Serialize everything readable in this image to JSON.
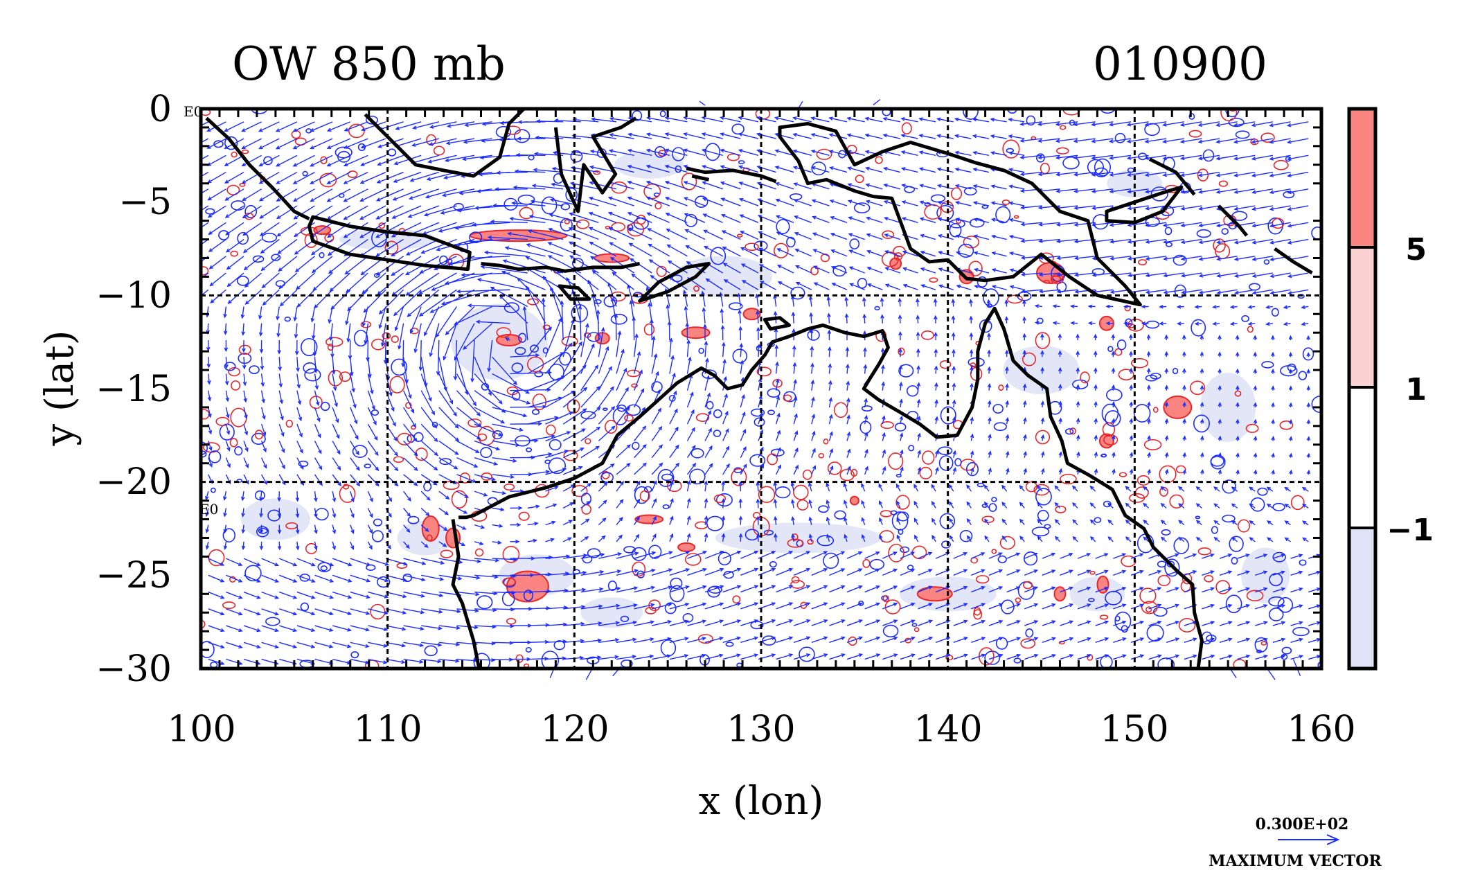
{
  "title": "OW 850 mb",
  "time_code": "010900",
  "map": {
    "xlabel": "x (lon)",
    "ylabel": "y (lat)",
    "x_ticks": [
      "100",
      "110",
      "120",
      "130",
      "140",
      "150",
      "160"
    ],
    "y_ticks": [
      "0",
      "−5",
      "−10",
      "−15",
      "−20",
      "−25",
      "−30"
    ],
    "corner_tag_top": "E0",
    "corner_tag_mid": "E0",
    "x_range": [
      100,
      160
    ],
    "y_range": [
      -30,
      0
    ],
    "grid_lines_lon": [
      110,
      120,
      130,
      140,
      150
    ],
    "grid_lines_lat": [
      -10,
      -20
    ]
  },
  "colorbar": {
    "labels": [
      "5",
      "1",
      "−1"
    ],
    "levels": [
      5,
      1,
      -1
    ],
    "colors": {
      "above_5": "#f98480",
      "between_1_5": "#fbd0d0",
      "between_-1_1": "#ffffff",
      "below_-1": "#dfe3f5"
    }
  },
  "vector_key": {
    "value": "0.300E+02",
    "label": "MAXIMUM VECTOR"
  },
  "colors": {
    "vector": "#1c2cff",
    "positive_contour": "#e8262a",
    "coastline": "#000000",
    "shade_positive": "#f98480",
    "shade_negative": "#dfe3f5"
  }
}
